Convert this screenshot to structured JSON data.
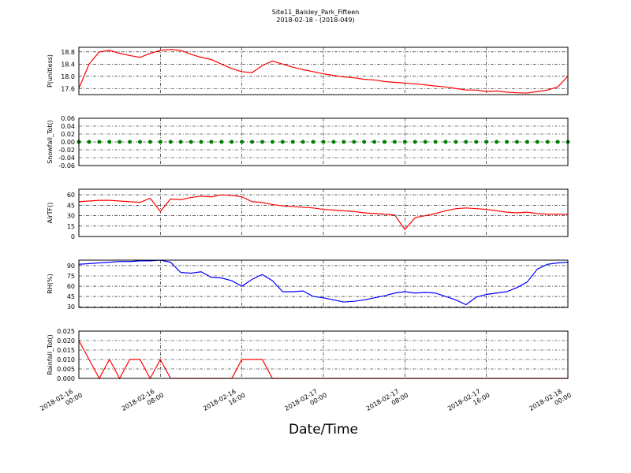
{
  "chart_data": [
    {
      "type": "line",
      "title": "Site11_Baisley_Park_Fifteen",
      "subtitle": "2018-02-18 - (2018-049)",
      "ylabel": "P(unitless)",
      "color": "#ff0000",
      "grid": true,
      "ylim": [
        17.4,
        18.95
      ],
      "yticks": [
        17.6,
        {
          "value": 18,
          "label": "18.0"
        },
        18.4,
        18.8
      ],
      "xlim": [
        "2018-02-16 00:00",
        "2018-02-18 00:00"
      ],
      "xticks": [
        "2018-02-16 00:00",
        "2018-02-16 08:00",
        "2018-02-16 16:00",
        "2018-02-17 00:00",
        "2018-02-17 08:00",
        "2018-02-17 16:00",
        "2018-02-18 00:00"
      ],
      "x": [
        "2018-02-16 00:00",
        "2018-02-16 01:00",
        "2018-02-16 02:00",
        "2018-02-16 03:00",
        "2018-02-16 04:00",
        "2018-02-16 05:00",
        "2018-02-16 06:00",
        "2018-02-16 07:00",
        "2018-02-16 08:00",
        "2018-02-16 09:00",
        "2018-02-16 10:00",
        "2018-02-16 11:00",
        "2018-02-16 12:00",
        "2018-02-16 13:00",
        "2018-02-16 14:00",
        "2018-02-16 15:00",
        "2018-02-16 16:00",
        "2018-02-16 17:00",
        "2018-02-16 18:00",
        "2018-02-16 19:00",
        "2018-02-16 20:00",
        "2018-02-16 21:00",
        "2018-02-16 22:00",
        "2018-02-16 23:00",
        "2018-02-17 00:00",
        "2018-02-17 01:00",
        "2018-02-17 02:00",
        "2018-02-17 03:00",
        "2018-02-17 04:00",
        "2018-02-17 05:00",
        "2018-02-17 06:00",
        "2018-02-17 07:00",
        "2018-02-17 08:00",
        "2018-02-17 09:00",
        "2018-02-17 10:00",
        "2018-02-17 11:00",
        "2018-02-17 12:00",
        "2018-02-17 13:00",
        "2018-02-17 14:00",
        "2018-02-17 15:00",
        "2018-02-17 16:00",
        "2018-02-17 17:00",
        "2018-02-17 18:00",
        "2018-02-17 19:00",
        "2018-02-17 20:00",
        "2018-02-17 21:00",
        "2018-02-17 22:00",
        "2018-02-17 23:00",
        "2018-02-18 00:00"
      ],
      "values": [
        17.6,
        18.4,
        18.8,
        18.85,
        18.75,
        18.68,
        18.62,
        18.75,
        18.85,
        18.88,
        18.85,
        18.72,
        18.62,
        18.55,
        18.4,
        18.25,
        18.15,
        18.12,
        18.35,
        18.5,
        18.4,
        18.3,
        18.22,
        18.15,
        18.08,
        18.03,
        17.98,
        17.95,
        17.9,
        17.88,
        17.83,
        17.8,
        17.78,
        17.75,
        17.72,
        17.68,
        17.65,
        17.6,
        17.55,
        17.55,
        17.5,
        17.52,
        17.48,
        17.46,
        17.45,
        17.5,
        17.55,
        17.65,
        18.0
      ]
    },
    {
      "type": "scatter",
      "ylabel": "Snowfall_Tot()",
      "color": "#008000",
      "grid": true,
      "ylim": [
        -0.06,
        0.06
      ],
      "yticks": [
        -0.06,
        -0.04,
        -0.02,
        {
          "value": 0,
          "label": "0.00"
        },
        0.02,
        0.04,
        0.06
      ],
      "xlim": [
        "2018-02-16 00:00",
        "2018-02-18 00:00"
      ],
      "xticks": [
        "2018-02-16 00:00",
        "2018-02-16 08:00",
        "2018-02-16 16:00",
        "2018-02-17 00:00",
        "2018-02-17 08:00",
        "2018-02-17 16:00",
        "2018-02-18 00:00"
      ],
      "x": [
        "2018-02-16 00:00",
        "2018-02-16 01:00",
        "2018-02-16 02:00",
        "2018-02-16 03:00",
        "2018-02-16 04:00",
        "2018-02-16 05:00",
        "2018-02-16 06:00",
        "2018-02-16 07:00",
        "2018-02-16 08:00",
        "2018-02-16 09:00",
        "2018-02-16 10:00",
        "2018-02-16 11:00",
        "2018-02-16 12:00",
        "2018-02-16 13:00",
        "2018-02-16 14:00",
        "2018-02-16 15:00",
        "2018-02-16 16:00",
        "2018-02-16 17:00",
        "2018-02-16 18:00",
        "2018-02-16 19:00",
        "2018-02-16 20:00",
        "2018-02-16 21:00",
        "2018-02-16 22:00",
        "2018-02-16 23:00",
        "2018-02-17 00:00",
        "2018-02-17 01:00",
        "2018-02-17 02:00",
        "2018-02-17 03:00",
        "2018-02-17 04:00",
        "2018-02-17 05:00",
        "2018-02-17 06:00",
        "2018-02-17 07:00",
        "2018-02-17 08:00",
        "2018-02-17 09:00",
        "2018-02-17 10:00",
        "2018-02-17 11:00",
        "2018-02-17 12:00",
        "2018-02-17 13:00",
        "2018-02-17 14:00",
        "2018-02-17 15:00",
        "2018-02-17 16:00",
        "2018-02-17 17:00",
        "2018-02-17 18:00",
        "2018-02-17 19:00",
        "2018-02-17 20:00",
        "2018-02-17 21:00",
        "2018-02-17 22:00",
        "2018-02-17 23:00",
        "2018-02-18 00:00"
      ],
      "values": [
        0,
        0,
        0,
        0,
        0,
        0,
        0,
        0,
        0,
        0,
        0,
        0,
        0,
        0,
        0,
        0,
        0,
        0,
        0,
        0,
        0,
        0,
        0,
        0,
        0,
        0,
        0,
        0,
        0,
        0,
        0,
        0,
        0,
        0,
        0,
        0,
        0,
        0,
        0,
        0,
        0,
        0,
        0,
        0,
        0,
        0,
        0,
        0,
        0
      ]
    },
    {
      "type": "line",
      "ylabel": "AirTF()",
      "color": "#ff0000",
      "grid": true,
      "ylim": [
        0,
        68
      ],
      "yticks": [
        0,
        15,
        30,
        45,
        60
      ],
      "xlim": [
        "2018-02-16 00:00",
        "2018-02-18 00:00"
      ],
      "xticks": [
        "2018-02-16 00:00",
        "2018-02-16 08:00",
        "2018-02-16 16:00",
        "2018-02-17 00:00",
        "2018-02-17 08:00",
        "2018-02-17 16:00",
        "2018-02-18 00:00"
      ],
      "x": [
        "2018-02-16 00:00",
        "2018-02-16 01:00",
        "2018-02-16 02:00",
        "2018-02-16 03:00",
        "2018-02-16 04:00",
        "2018-02-16 05:00",
        "2018-02-16 06:00",
        "2018-02-16 07:00",
        "2018-02-16 08:00",
        "2018-02-16 09:00",
        "2018-02-16 10:00",
        "2018-02-16 11:00",
        "2018-02-16 12:00",
        "2018-02-16 13:00",
        "2018-02-16 14:00",
        "2018-02-16 15:00",
        "2018-02-16 16:00",
        "2018-02-16 17:00",
        "2018-02-16 18:00",
        "2018-02-16 19:00",
        "2018-02-16 20:00",
        "2018-02-16 21:00",
        "2018-02-16 22:00",
        "2018-02-16 23:00",
        "2018-02-17 00:00",
        "2018-02-17 01:00",
        "2018-02-17 02:00",
        "2018-02-17 03:00",
        "2018-02-17 04:00",
        "2018-02-17 05:00",
        "2018-02-17 06:00",
        "2018-02-17 07:00",
        "2018-02-17 08:00",
        "2018-02-17 09:00",
        "2018-02-17 10:00",
        "2018-02-17 11:00",
        "2018-02-17 12:00",
        "2018-02-17 13:00",
        "2018-02-17 14:00",
        "2018-02-17 15:00",
        "2018-02-17 16:00",
        "2018-02-17 17:00",
        "2018-02-17 18:00",
        "2018-02-17 19:00",
        "2018-02-17 20:00",
        "2018-02-17 21:00",
        "2018-02-17 22:00",
        "2018-02-17 23:00",
        "2018-02-18 00:00"
      ],
      "values": [
        50,
        51,
        52,
        52,
        51,
        50,
        49,
        55,
        36,
        54,
        53,
        56,
        58,
        57,
        60,
        59,
        57,
        50,
        49,
        46,
        44,
        43,
        42,
        41,
        39,
        38,
        37,
        36,
        34,
        33,
        32,
        31,
        10,
        27,
        30,
        33,
        37,
        40,
        41,
        40,
        39,
        37,
        35,
        34,
        35,
        33,
        32,
        32,
        32
      ]
    },
    {
      "type": "line",
      "ylabel": "RH(%)",
      "color": "#0000ff",
      "grid": true,
      "ylim": [
        29,
        98
      ],
      "yticks": [
        30,
        45,
        60,
        75,
        90
      ],
      "xlim": [
        "2018-02-16 00:00",
        "2018-02-18 00:00"
      ],
      "xticks": [
        "2018-02-16 00:00",
        "2018-02-16 08:00",
        "2018-02-16 16:00",
        "2018-02-17 00:00",
        "2018-02-17 08:00",
        "2018-02-17 16:00",
        "2018-02-18 00:00"
      ],
      "x": [
        "2018-02-16 00:00",
        "2018-02-16 01:00",
        "2018-02-16 02:00",
        "2018-02-16 03:00",
        "2018-02-16 04:00",
        "2018-02-16 05:00",
        "2018-02-16 06:00",
        "2018-02-16 07:00",
        "2018-02-16 08:00",
        "2018-02-16 09:00",
        "2018-02-16 10:00",
        "2018-02-16 11:00",
        "2018-02-16 12:00",
        "2018-02-16 13:00",
        "2018-02-16 14:00",
        "2018-02-16 15:00",
        "2018-02-16 16:00",
        "2018-02-16 17:00",
        "2018-02-16 18:00",
        "2018-02-16 19:00",
        "2018-02-16 20:00",
        "2018-02-16 21:00",
        "2018-02-16 22:00",
        "2018-02-16 23:00",
        "2018-02-17 00:00",
        "2018-02-17 01:00",
        "2018-02-17 02:00",
        "2018-02-17 03:00",
        "2018-02-17 04:00",
        "2018-02-17 05:00",
        "2018-02-17 06:00",
        "2018-02-17 07:00",
        "2018-02-17 08:00",
        "2018-02-17 09:00",
        "2018-02-17 10:00",
        "2018-02-17 11:00",
        "2018-02-17 12:00",
        "2018-02-17 13:00",
        "2018-02-17 14:00",
        "2018-02-17 15:00",
        "2018-02-17 16:00",
        "2018-02-17 17:00",
        "2018-02-17 18:00",
        "2018-02-17 19:00",
        "2018-02-17 20:00",
        "2018-02-17 21:00",
        "2018-02-17 22:00",
        "2018-02-17 23:00",
        "2018-02-18 00:00"
      ],
      "values": [
        92,
        93,
        94,
        95,
        96,
        96,
        97,
        97,
        98,
        95,
        80,
        79,
        81,
        73,
        72,
        68,
        60,
        70,
        77,
        68,
        52,
        52,
        53,
        45,
        43,
        40,
        37,
        38,
        40,
        43,
        46,
        50,
        52,
        50,
        51,
        50,
        45,
        40,
        33,
        44,
        48,
        50,
        52,
        58,
        66,
        85,
        92,
        94,
        95
      ]
    },
    {
      "type": "line",
      "ylabel": "Rainfall_Tot()",
      "color": "#ff0000",
      "grid": true,
      "xlabel": "Date/Time",
      "ylim": [
        0,
        0.025
      ],
      "yticks": [
        {
          "value": 0,
          "label": "0.000"
        },
        {
          "value": 0.005,
          "label": "0.005"
        },
        {
          "value": 0.01,
          "label": "0.010"
        },
        {
          "value": 0.015,
          "label": "0.015"
        },
        {
          "value": 0.02,
          "label": "0.020"
        },
        {
          "value": 0.025,
          "label": "0.025"
        }
      ],
      "xlim": [
        "2018-02-16 00:00",
        "2018-02-18 00:00"
      ],
      "xticks": [
        "2018-02-16 00:00",
        "2018-02-16 08:00",
        "2018-02-16 16:00",
        "2018-02-17 00:00",
        "2018-02-17 08:00",
        "2018-02-17 16:00",
        "2018-02-18 00:00"
      ],
      "x": [
        "2018-02-16 00:00",
        "2018-02-16 01:00",
        "2018-02-16 02:00",
        "2018-02-16 03:00",
        "2018-02-16 04:00",
        "2018-02-16 05:00",
        "2018-02-16 06:00",
        "2018-02-16 07:00",
        "2018-02-16 08:00",
        "2018-02-16 09:00",
        "2018-02-16 10:00",
        "2018-02-16 11:00",
        "2018-02-16 12:00",
        "2018-02-16 13:00",
        "2018-02-16 14:00",
        "2018-02-16 15:00",
        "2018-02-16 16:00",
        "2018-02-16 17:00",
        "2018-02-16 18:00",
        "2018-02-16 19:00",
        "2018-02-16 20:00",
        "2018-02-16 21:00",
        "2018-02-16 22:00",
        "2018-02-16 23:00",
        "2018-02-17 00:00",
        "2018-02-17 01:00",
        "2018-02-17 02:00",
        "2018-02-17 03:00",
        "2018-02-17 04:00",
        "2018-02-17 05:00",
        "2018-02-17 06:00",
        "2018-02-17 07:00",
        "2018-02-17 08:00",
        "2018-02-17 09:00",
        "2018-02-17 10:00",
        "2018-02-17 11:00",
        "2018-02-17 12:00",
        "2018-02-17 13:00",
        "2018-02-17 14:00",
        "2018-02-17 15:00",
        "2018-02-17 16:00",
        "2018-02-17 17:00",
        "2018-02-17 18:00",
        "2018-02-17 19:00",
        "2018-02-17 20:00",
        "2018-02-17 21:00",
        "2018-02-17 22:00",
        "2018-02-17 23:00",
        "2018-02-18 00:00"
      ],
      "values": [
        0.02,
        0.01,
        0,
        0.01,
        0,
        0.01,
        0.01,
        0,
        0.01,
        0,
        0,
        0,
        0,
        0,
        0,
        0,
        0.01,
        0.01,
        0.01,
        0,
        0,
        0,
        0,
        0,
        0,
        0,
        0,
        0,
        0,
        0,
        0,
        0,
        0,
        0,
        0,
        0,
        0,
        0,
        0,
        0,
        0,
        0,
        0,
        0,
        0,
        0,
        0,
        0,
        0
      ]
    }
  ]
}
